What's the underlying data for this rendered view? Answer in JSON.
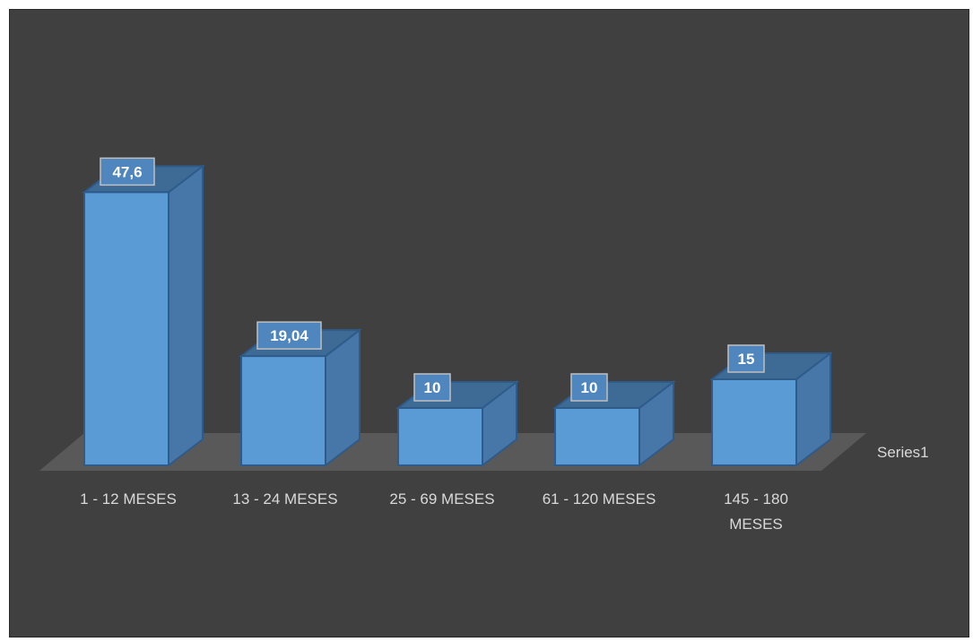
{
  "chart_data": {
    "type": "bar",
    "categories": [
      "1 - 12 MESES",
      "13 - 24 MESES",
      "25 - 69 MESES",
      "61 - 120 MESES",
      "145 - 180 MESES"
    ],
    "category_lines": [
      [
        "1 - 12 MESES"
      ],
      [
        "13 - 24 MESES"
      ],
      [
        "25 - 69 MESES"
      ],
      [
        "61 - 120 MESES"
      ],
      [
        "145 - 180",
        "MESES"
      ]
    ],
    "series": [
      {
        "name": "Series1",
        "values": [
          47.6,
          19.04,
          10,
          10,
          15
        ]
      }
    ],
    "value_labels": [
      "47,6",
      "19,04",
      "10",
      "10",
      "15"
    ],
    "title": "",
    "xlabel": "",
    "ylabel": "",
    "ylim": [
      0,
      50
    ],
    "grid": false,
    "legend": "none",
    "style": "3d-column",
    "colors": {
      "background": "#404040",
      "bar_front": "#5b9bd5",
      "bar_side": "#4677a8",
      "bar_top": "#3e6a96",
      "floor": "#595959",
      "text": "#d9d9d9"
    }
  }
}
